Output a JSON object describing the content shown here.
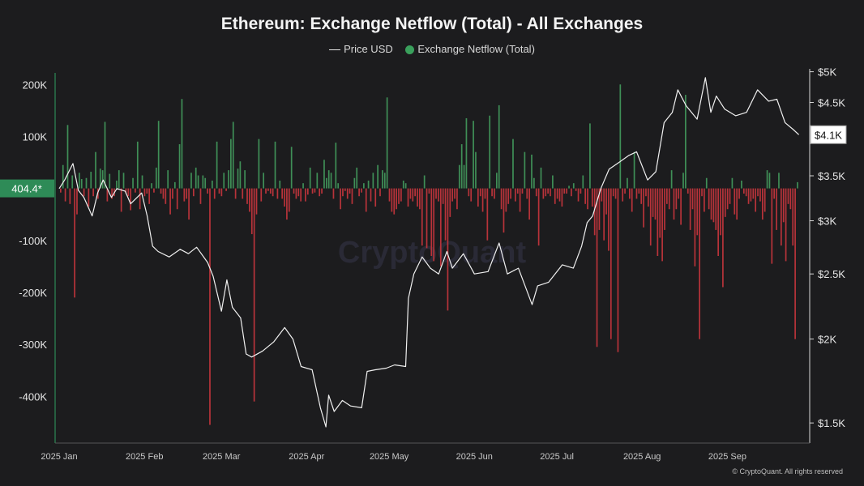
{
  "title": "Ethereum: Exchange Netflow (Total) - All Exchanges",
  "legend": {
    "price_label": "Price USD",
    "netflow_label": "Exchange Netflow (Total)"
  },
  "watermark": "CryptoQuant",
  "credit": "© CryptoQuant. All rights reserved",
  "colors": {
    "background": "#1c1c1e",
    "inflow": "#3f8f57",
    "outflow": "#b8333a",
    "price_line": "#f0f0f0",
    "left_axis_marker": "#2e8b57"
  },
  "current_values": {
    "netflow_badge": "404.4*",
    "price_badge": "$4.1K"
  },
  "chart_data": {
    "type": "bar+line",
    "x_range": [
      "2025-01-01",
      "2025-09-28"
    ],
    "x_tick_labels": [
      "2025 Jan",
      "2025 Feb",
      "2025 Mar",
      "2025 Apr",
      "2025 May",
      "2025 Jun",
      "2025 Jul",
      "2025 Aug",
      "2025 Sep"
    ],
    "x_tick_dates": [
      "2025-01-01",
      "2025-02-01",
      "2025-03-01",
      "2025-04-01",
      "2025-05-01",
      "2025-06-01",
      "2025-07-01",
      "2025-08-01",
      "2025-09-01"
    ],
    "left_axis": {
      "range": [
        -490000,
        230000
      ],
      "ticks": [
        200000,
        100000,
        -100000,
        -200000,
        -300000,
        -400000
      ],
      "tick_labels": [
        "200K",
        "100K",
        "-100K",
        "-200K",
        "-300K",
        "-400K"
      ]
    },
    "right_axis": {
      "scale": "log",
      "range": [
        1400,
        5050
      ],
      "ticks": [
        5000,
        4500,
        4000,
        3500,
        3000,
        2500,
        2000,
        1500
      ],
      "tick_labels": [
        "$5K",
        "$4.5K",
        "$4K",
        "$3.5K",
        "$3K",
        "$2.5K",
        "$2K",
        "$1.5K"
      ]
    },
    "series": [
      {
        "name": "Exchange Netflow (Total)",
        "kind": "bar",
        "values": [
          -8000,
          45000,
          -25000,
          122000,
          -30000,
          25000,
          -210000,
          -50000,
          30000,
          18000,
          -15000,
          20000,
          -35000,
          32000,
          -15000,
          70000,
          -20000,
          38000,
          35000,
          128000,
          -25000,
          28000,
          -20000,
          -15000,
          15000,
          35000,
          -45000,
          30000,
          -10000,
          -15000,
          -42000,
          20000,
          -8000,
          90000,
          -40000,
          25000,
          -15000,
          -10000,
          -30000,
          10000,
          -8000,
          40000,
          130000,
          -10000,
          -20000,
          -30000,
          35000,
          -50000,
          -20000,
          12000,
          -40000,
          85000,
          172000,
          -25000,
          -20000,
          -60000,
          30000,
          -15000,
          40000,
          25000,
          -30000,
          25000,
          20000,
          -10000,
          -455000,
          15000,
          -20000,
          90000,
          -10000,
          -15000,
          30000,
          -5000,
          35000,
          95000,
          128000,
          -20000,
          38000,
          52000,
          -20000,
          35000,
          -30000,
          -45000,
          -88000,
          -410000,
          -50000,
          95000,
          -25000,
          30000,
          -10000,
          -5000,
          -10000,
          -15000,
          90000,
          -20000,
          15000,
          -20000,
          -35000,
          -60000,
          -45000,
          80000,
          -10000,
          -20000,
          -15000,
          -25000,
          10000,
          -25000,
          -12000,
          40000,
          -10000,
          -8000,
          30000,
          -15000,
          -10000,
          55000,
          20000,
          35000,
          30000,
          -20000,
          88000,
          10000,
          -40000,
          -15000,
          -5000,
          -20000,
          -10000,
          -30000,
          20000,
          40000,
          -15000,
          -8000,
          10000,
          -45000,
          15000,
          -25000,
          30000,
          -35000,
          45000,
          -15000,
          35000,
          30000,
          175000,
          -25000,
          -45000,
          -50000,
          -40000,
          -30000,
          -25000,
          15000,
          10000,
          -35000,
          -20000,
          -25000,
          -15000,
          -35000,
          -40000,
          -110000,
          25000,
          -115000,
          -10000,
          -130000,
          -140000,
          -20000,
          -25000,
          -150000,
          -30000,
          -100000,
          -235000,
          -55000,
          -25000,
          -20000,
          -40000,
          45000,
          85000,
          45000,
          135000,
          -15000,
          -25000,
          130000,
          70000,
          -35000,
          -15000,
          -45000,
          -20000,
          -100000,
          140000,
          -15000,
          -20000,
          30000,
          160000,
          -40000,
          -85000,
          -45000,
          -30000,
          -20000,
          95000,
          -25000,
          -10000,
          -45000,
          -10000,
          70000,
          -20000,
          -60000,
          65000,
          20000,
          -15000,
          -110000,
          40000,
          -20000,
          -15000,
          -10000,
          -15000,
          25000,
          -30000,
          -20000,
          -25000,
          -35000,
          -10000,
          -10000,
          5000,
          -15000,
          10000,
          -5000,
          -25000,
          -10000,
          25000,
          -30000,
          -40000,
          125000,
          -35000,
          -90000,
          -305000,
          -80000,
          -25000,
          -100000,
          -50000,
          -120000,
          -290000,
          -15000,
          -20000,
          -315000,
          200000,
          -25000,
          -10000,
          20000,
          -20000,
          -45000,
          70000,
          -20000,
          -10000,
          -30000,
          -75000,
          -15000,
          -35000,
          -110000,
          -55000,
          -60000,
          -130000,
          -95000,
          -140000,
          -80000,
          -30000,
          -40000,
          35000,
          -60000,
          -40000,
          -20000,
          -70000,
          30000,
          180000,
          -10000,
          -80000,
          -40000,
          -150000,
          -90000,
          -290000,
          -15000,
          -45000,
          20000,
          -40000,
          -60000,
          -65000,
          -80000,
          -130000,
          -90000,
          -190000,
          -55000,
          -40000,
          -30000,
          20000,
          -50000,
          -60000,
          -20000,
          15000,
          -10000,
          -15000,
          -30000,
          -25000,
          -20000,
          -45000,
          -15000,
          -25000,
          -60000,
          -45000,
          35000,
          30000,
          -145000,
          -20000,
          -80000,
          30000,
          -110000,
          -65000,
          -140000,
          -30000,
          -40000,
          -110000,
          -290000,
          12000
        ]
      },
      {
        "name": "Price USD",
        "kind": "line",
        "points": [
          [
            "2025-01-01",
            3350
          ],
          [
            "2025-01-03",
            3450
          ],
          [
            "2025-01-06",
            3650
          ],
          [
            "2025-01-08",
            3330
          ],
          [
            "2025-01-10",
            3250
          ],
          [
            "2025-01-13",
            3050
          ],
          [
            "2025-01-15",
            3300
          ],
          [
            "2025-01-17",
            3450
          ],
          [
            "2025-01-20",
            3250
          ],
          [
            "2025-01-22",
            3350
          ],
          [
            "2025-01-25",
            3320
          ],
          [
            "2025-01-27",
            3180
          ],
          [
            "2025-01-31",
            3300
          ],
          [
            "2025-02-02",
            3050
          ],
          [
            "2025-02-04",
            2750
          ],
          [
            "2025-02-06",
            2700
          ],
          [
            "2025-02-10",
            2650
          ],
          [
            "2025-02-14",
            2720
          ],
          [
            "2025-02-17",
            2680
          ],
          [
            "2025-02-20",
            2740
          ],
          [
            "2025-02-24",
            2600
          ],
          [
            "2025-02-26",
            2480
          ],
          [
            "2025-03-01",
            2200
          ],
          [
            "2025-03-03",
            2450
          ],
          [
            "2025-03-05",
            2230
          ],
          [
            "2025-03-08",
            2150
          ],
          [
            "2025-03-10",
            1900
          ],
          [
            "2025-03-12",
            1880
          ],
          [
            "2025-03-16",
            1920
          ],
          [
            "2025-03-20",
            1980
          ],
          [
            "2025-03-24",
            2080
          ],
          [
            "2025-03-27",
            2000
          ],
          [
            "2025-03-30",
            1820
          ],
          [
            "2025-04-03",
            1800
          ],
          [
            "2025-04-06",
            1580
          ],
          [
            "2025-04-08",
            1480
          ],
          [
            "2025-04-09",
            1650
          ],
          [
            "2025-04-11",
            1560
          ],
          [
            "2025-04-14",
            1620
          ],
          [
            "2025-04-17",
            1590
          ],
          [
            "2025-04-21",
            1580
          ],
          [
            "2025-04-23",
            1790
          ],
          [
            "2025-04-26",
            1800
          ],
          [
            "2025-04-30",
            1810
          ],
          [
            "2025-05-03",
            1830
          ],
          [
            "2025-05-07",
            1820
          ],
          [
            "2025-05-08",
            2300
          ],
          [
            "2025-05-10",
            2500
          ],
          [
            "2025-05-13",
            2650
          ],
          [
            "2025-05-16",
            2550
          ],
          [
            "2025-05-19",
            2500
          ],
          [
            "2025-05-22",
            2700
          ],
          [
            "2025-05-24",
            2550
          ],
          [
            "2025-05-28",
            2680
          ],
          [
            "2025-06-01",
            2500
          ],
          [
            "2025-06-06",
            2520
          ],
          [
            "2025-06-10",
            2780
          ],
          [
            "2025-06-13",
            2500
          ],
          [
            "2025-06-17",
            2550
          ],
          [
            "2025-06-22",
            2250
          ],
          [
            "2025-06-24",
            2400
          ],
          [
            "2025-06-28",
            2430
          ],
          [
            "2025-07-03",
            2580
          ],
          [
            "2025-07-07",
            2550
          ],
          [
            "2025-07-10",
            2750
          ],
          [
            "2025-07-12",
            2980
          ],
          [
            "2025-07-14",
            3050
          ],
          [
            "2025-07-17",
            3350
          ],
          [
            "2025-07-20",
            3580
          ],
          [
            "2025-07-23",
            3650
          ],
          [
            "2025-07-27",
            3750
          ],
          [
            "2025-07-30",
            3800
          ],
          [
            "2025-08-03",
            3450
          ],
          [
            "2025-08-06",
            3550
          ],
          [
            "2025-08-09",
            4200
          ],
          [
            "2025-08-12",
            4350
          ],
          [
            "2025-08-14",
            4700
          ],
          [
            "2025-08-17",
            4450
          ],
          [
            "2025-08-21",
            4250
          ],
          [
            "2025-08-24",
            4900
          ],
          [
            "2025-08-26",
            4350
          ],
          [
            "2025-08-28",
            4600
          ],
          [
            "2025-08-31",
            4400
          ],
          [
            "2025-09-04",
            4300
          ],
          [
            "2025-09-08",
            4350
          ],
          [
            "2025-09-12",
            4700
          ],
          [
            "2025-09-16",
            4520
          ],
          [
            "2025-09-19",
            4550
          ],
          [
            "2025-09-22",
            4200
          ],
          [
            "2025-09-25",
            4100
          ],
          [
            "2025-09-27",
            4030
          ]
        ]
      }
    ],
    "grid": false,
    "legend_position": "top-center"
  }
}
